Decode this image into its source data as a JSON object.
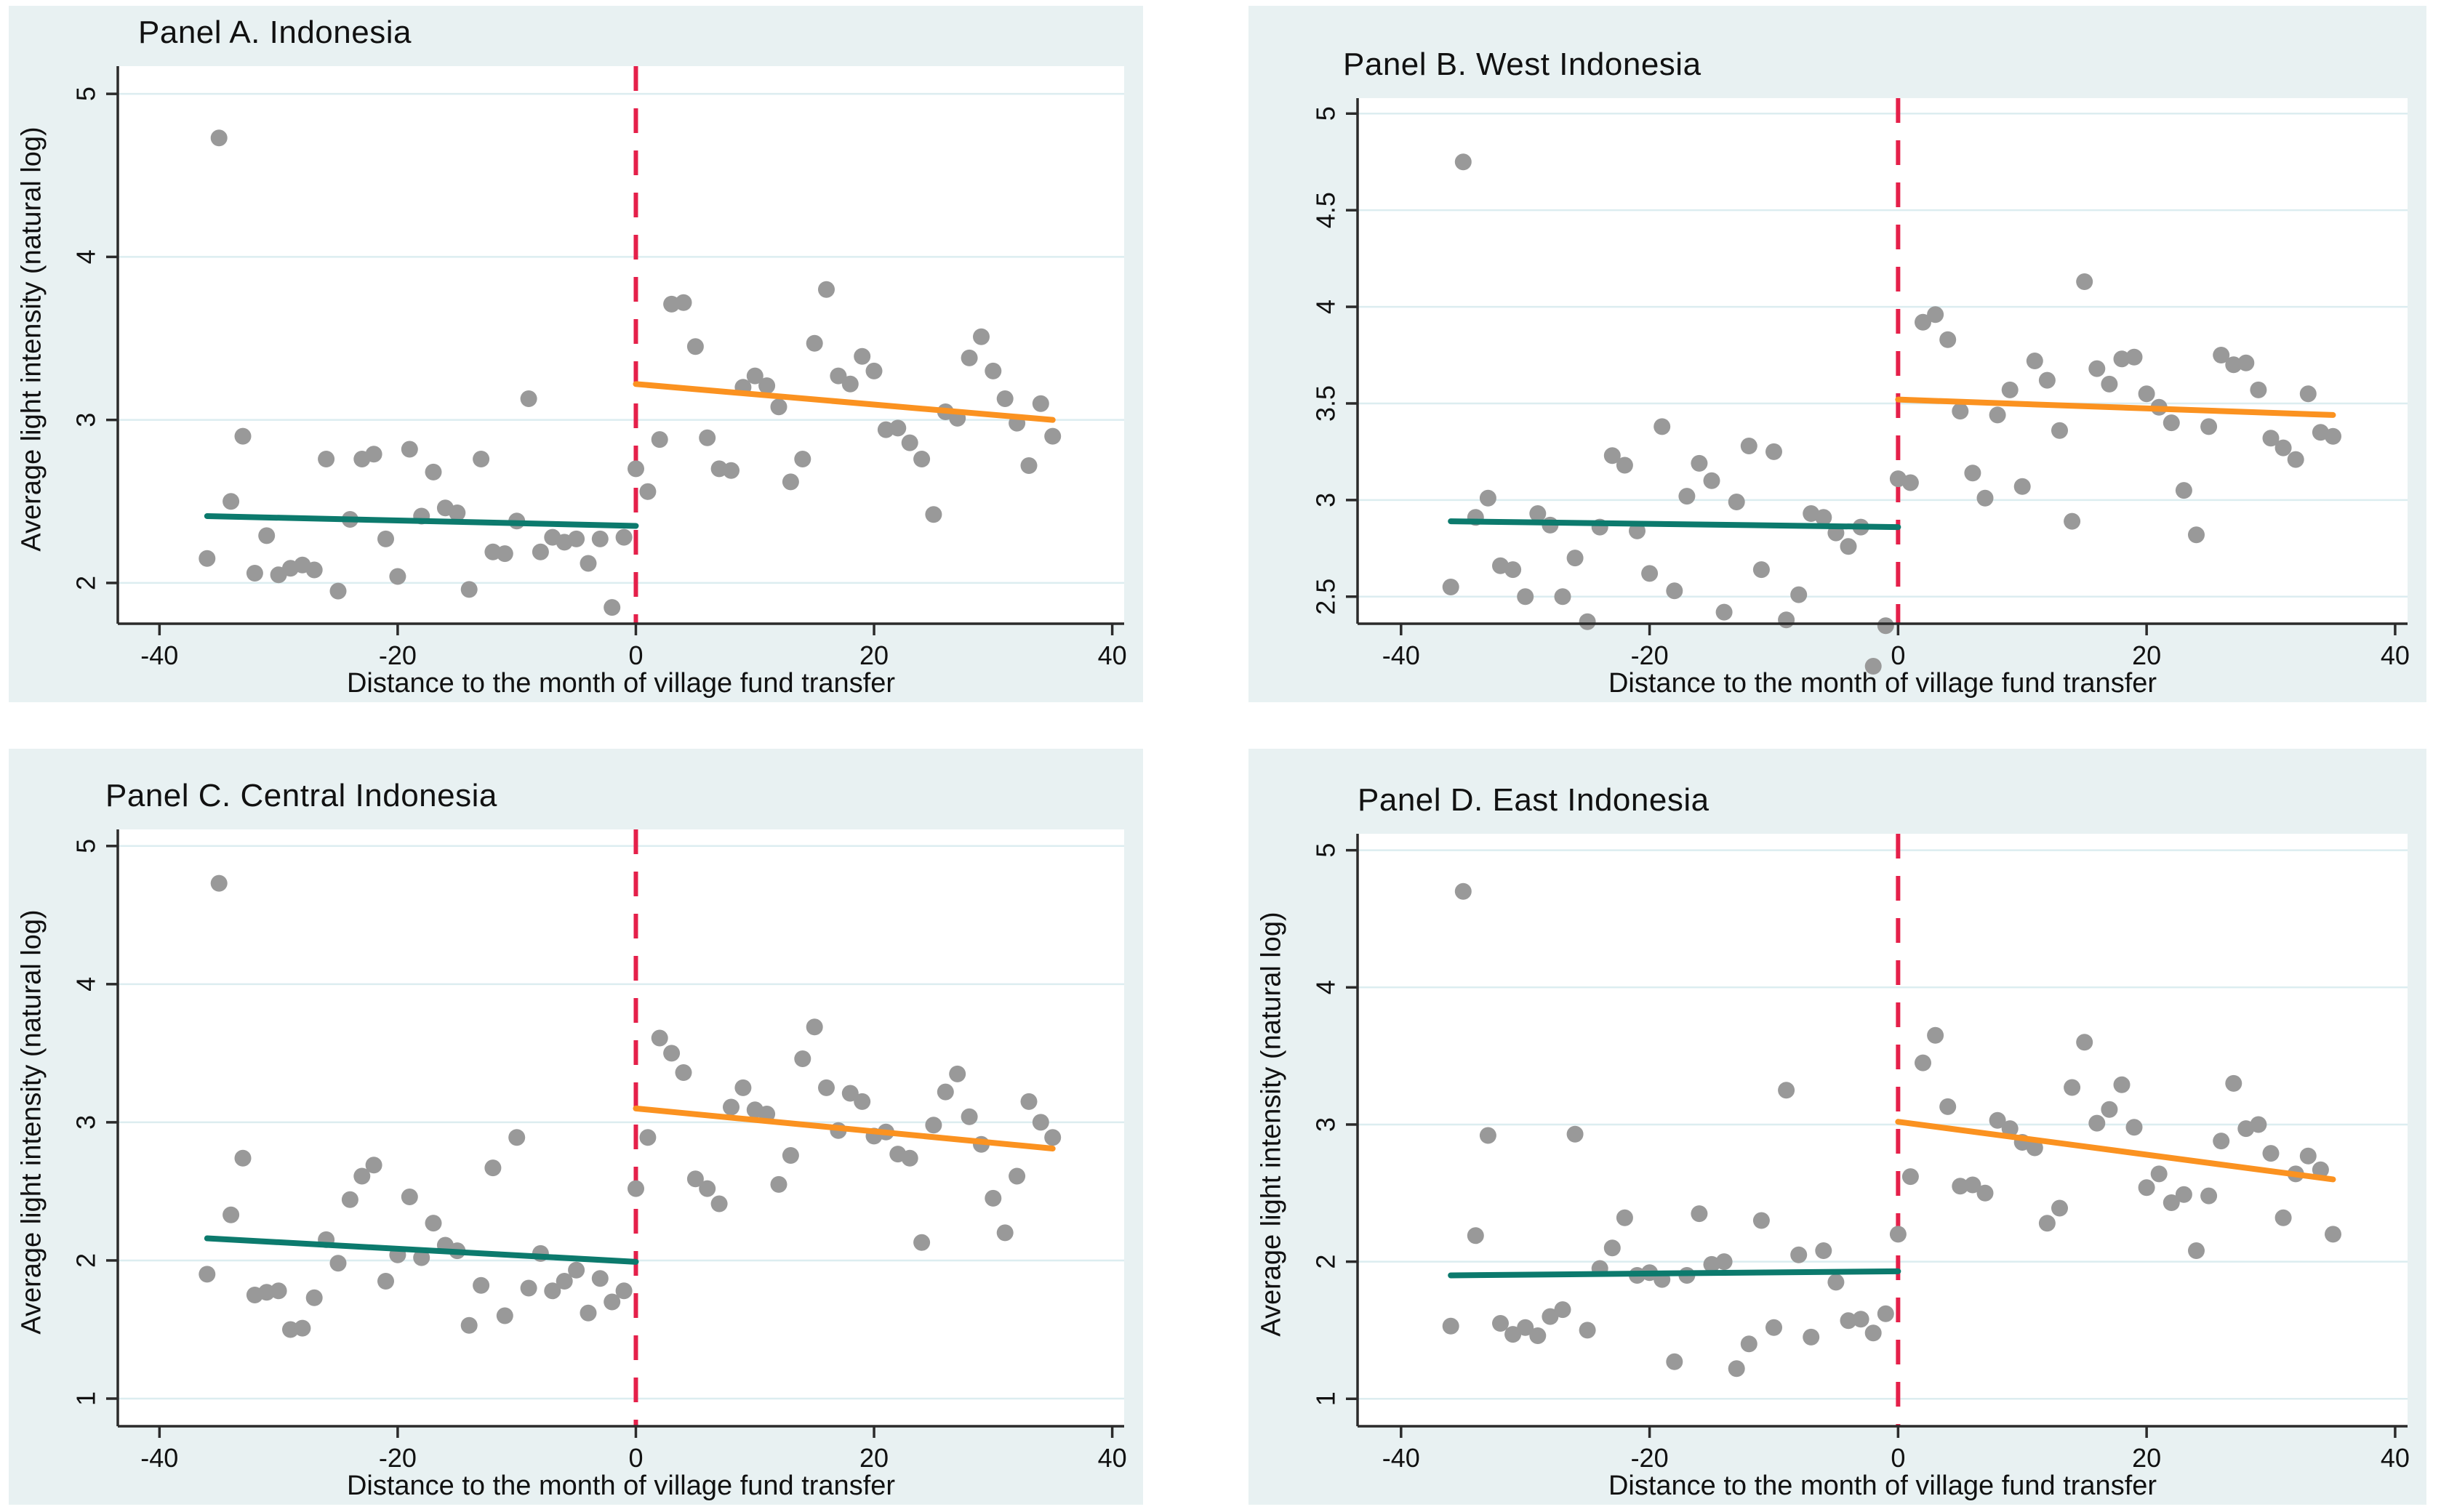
{
  "styles": {
    "canvas_bg": "#ffffff",
    "panel_bg": "#e8f1f2",
    "plot_bg": "#ffffff",
    "grid_color": "#dcedf0",
    "axis_color": "#2b2b2b",
    "text_color": "#111111",
    "point_color": "#999999",
    "pre_fit_color": "#0c7a6d",
    "post_fit_color": "#fb9220",
    "cutoff_color": "#e5204a"
  },
  "chart_data": [
    {
      "type": "scatter",
      "title": "Panel A. Indonesia",
      "xlabel": "Distance to the month of village fund transfer",
      "ylabel": "Average light intensity (natural log)",
      "xlim": [
        -43.5,
        41
      ],
      "ylim": [
        1.75,
        5.17
      ],
      "xticks": [
        -40,
        -20,
        0,
        20,
        40
      ],
      "yticks": [
        2,
        3,
        4,
        5
      ],
      "grid": true,
      "legend": "none",
      "cutoff_x": 0,
      "fit_pre": [
        [
          -36,
          2.41
        ],
        [
          0,
          2.35
        ]
      ],
      "fit_post": [
        [
          0,
          3.22
        ],
        [
          35,
          3.0
        ]
      ],
      "points": [
        [
          -36,
          2.15
        ],
        [
          -35,
          4.73
        ],
        [
          -34,
          2.5
        ],
        [
          -33,
          2.9
        ],
        [
          -32,
          2.06
        ],
        [
          -31,
          2.29
        ],
        [
          -30,
          2.05
        ],
        [
          -29,
          2.09
        ],
        [
          -28,
          2.11
        ],
        [
          -27,
          2.08
        ],
        [
          -26,
          2.76
        ],
        [
          -25,
          1.95
        ],
        [
          -24,
          2.39
        ],
        [
          -23,
          2.76
        ],
        [
          -22,
          2.79
        ],
        [
          -21,
          2.27
        ],
        [
          -20,
          2.04
        ],
        [
          -19,
          2.82
        ],
        [
          -18,
          2.41
        ],
        [
          -17,
          2.68
        ],
        [
          -16,
          2.46
        ],
        [
          -15,
          2.43
        ],
        [
          -14,
          1.96
        ],
        [
          -13,
          2.76
        ],
        [
          -12,
          2.19
        ],
        [
          -11,
          2.18
        ],
        [
          -10,
          2.38
        ],
        [
          -9,
          3.13
        ],
        [
          -8,
          2.19
        ],
        [
          -7,
          2.28
        ],
        [
          -6,
          2.25
        ],
        [
          -5,
          2.27
        ],
        [
          -4,
          2.12
        ],
        [
          -3,
          2.27
        ],
        [
          -2,
          1.85
        ],
        [
          -1,
          2.28
        ],
        [
          0,
          2.7
        ],
        [
          1,
          2.56
        ],
        [
          2,
          2.88
        ],
        [
          3,
          3.71
        ],
        [
          4,
          3.72
        ],
        [
          5,
          3.45
        ],
        [
          6,
          2.89
        ],
        [
          7,
          2.7
        ],
        [
          8,
          2.69
        ],
        [
          9,
          3.2
        ],
        [
          10,
          3.27
        ],
        [
          11,
          3.21
        ],
        [
          12,
          3.08
        ],
        [
          13,
          2.62
        ],
        [
          14,
          2.76
        ],
        [
          15,
          3.47
        ],
        [
          16,
          3.8
        ],
        [
          17,
          3.27
        ],
        [
          18,
          3.22
        ],
        [
          19,
          3.39
        ],
        [
          20,
          3.3
        ],
        [
          21,
          2.94
        ],
        [
          22,
          2.95
        ],
        [
          23,
          2.86
        ],
        [
          24,
          2.76
        ],
        [
          25,
          2.42
        ],
        [
          26,
          3.05
        ],
        [
          27,
          3.01
        ],
        [
          28,
          3.38
        ],
        [
          29,
          3.51
        ],
        [
          30,
          3.3
        ],
        [
          31,
          3.13
        ],
        [
          32,
          2.98
        ],
        [
          33,
          2.72
        ],
        [
          34,
          3.1
        ],
        [
          35,
          2.9
        ]
      ]
    },
    {
      "type": "scatter",
      "title": "Panel B. West Indonesia",
      "xlabel": "Distance to the month of village fund transfer",
      "ylabel": "",
      "xlim": [
        -43.5,
        41
      ],
      "ylim": [
        2.36,
        5.08
      ],
      "xticks": [
        -40,
        -20,
        0,
        20,
        40
      ],
      "yticks": [
        2.5,
        3,
        3.5,
        4,
        4.5,
        5
      ],
      "grid": true,
      "legend": "none",
      "cutoff_x": 0,
      "fit_pre": [
        [
          -36,
          2.89
        ],
        [
          0,
          2.86
        ]
      ],
      "fit_post": [
        [
          0,
          3.52
        ],
        [
          35,
          3.44
        ]
      ],
      "points": [
        [
          -36,
          2.55
        ],
        [
          -35,
          4.75
        ],
        [
          -34,
          2.91
        ],
        [
          -33,
          3.01
        ],
        [
          -32,
          2.66
        ],
        [
          -31,
          2.64
        ],
        [
          -30,
          2.5
        ],
        [
          -29,
          2.93
        ],
        [
          -28,
          2.87
        ],
        [
          -27,
          2.5
        ],
        [
          -26,
          2.7
        ],
        [
          -25,
          2.37
        ],
        [
          -24,
          2.86
        ],
        [
          -23,
          3.23
        ],
        [
          -22,
          3.18
        ],
        [
          -21,
          2.84
        ],
        [
          -20,
          2.62
        ],
        [
          -19,
          3.38
        ],
        [
          -18,
          2.53
        ],
        [
          -17,
          3.02
        ],
        [
          -16,
          3.19
        ],
        [
          -15,
          3.1
        ],
        [
          -14,
          2.42
        ],
        [
          -13,
          2.99
        ],
        [
          -12,
          3.28
        ],
        [
          -11,
          2.64
        ],
        [
          -10,
          3.25
        ],
        [
          -9,
          2.38
        ],
        [
          -8,
          2.51
        ],
        [
          -7,
          2.93
        ],
        [
          -6,
          2.91
        ],
        [
          -5,
          2.83
        ],
        [
          -4,
          2.76
        ],
        [
          -3,
          2.86
        ],
        [
          -2,
          2.14
        ],
        [
          -1,
          2.35
        ],
        [
          0,
          3.11
        ],
        [
          1,
          3.09
        ],
        [
          2,
          3.92
        ],
        [
          3,
          3.96
        ],
        [
          4,
          3.83
        ],
        [
          5,
          3.46
        ],
        [
          6,
          3.14
        ],
        [
          7,
          3.01
        ],
        [
          8,
          3.44
        ],
        [
          9,
          3.57
        ],
        [
          10,
          3.07
        ],
        [
          11,
          3.72
        ],
        [
          12,
          3.62
        ],
        [
          13,
          3.36
        ],
        [
          14,
          2.89
        ],
        [
          15,
          4.13
        ],
        [
          16,
          3.68
        ],
        [
          17,
          3.6
        ],
        [
          18,
          3.73
        ],
        [
          19,
          3.74
        ],
        [
          20,
          3.55
        ],
        [
          21,
          3.48
        ],
        [
          22,
          3.4
        ],
        [
          23,
          3.05
        ],
        [
          24,
          2.82
        ],
        [
          25,
          3.38
        ],
        [
          26,
          3.75
        ],
        [
          27,
          3.7
        ],
        [
          28,
          3.71
        ],
        [
          29,
          3.57
        ],
        [
          30,
          3.32
        ],
        [
          31,
          3.27
        ],
        [
          32,
          3.21
        ],
        [
          33,
          3.55
        ],
        [
          34,
          3.35
        ],
        [
          35,
          3.33
        ]
      ]
    },
    {
      "type": "scatter",
      "title": "Panel C. Central Indonesia",
      "xlabel": "Distance to the month of village fund transfer",
      "ylabel": "Average light intensity (natural log)",
      "xlim": [
        -43.5,
        41
      ],
      "ylim": [
        0.8,
        5.12
      ],
      "xticks": [
        -40,
        -20,
        0,
        20,
        40
      ],
      "yticks": [
        1,
        2,
        3,
        4,
        5
      ],
      "grid": true,
      "legend": "none",
      "cutoff_x": 0,
      "fit_pre": [
        [
          -36,
          2.16
        ],
        [
          0,
          1.99
        ]
      ],
      "fit_post": [
        [
          0,
          3.1
        ],
        [
          35,
          2.81
        ]
      ],
      "points": [
        [
          -36,
          1.9
        ],
        [
          -35,
          4.73
        ],
        [
          -34,
          2.33
        ],
        [
          -33,
          2.74
        ],
        [
          -32,
          1.75
        ],
        [
          -31,
          1.77
        ],
        [
          -30,
          1.78
        ],
        [
          -29,
          1.5
        ],
        [
          -28,
          1.51
        ],
        [
          -27,
          1.73
        ],
        [
          -26,
          2.15
        ],
        [
          -25,
          1.98
        ],
        [
          -24,
          2.44
        ],
        [
          -23,
          2.61
        ],
        [
          -22,
          2.69
        ],
        [
          -21,
          1.85
        ],
        [
          -20,
          2.04
        ],
        [
          -19,
          2.46
        ],
        [
          -18,
          2.02
        ],
        [
          -17,
          2.27
        ],
        [
          -16,
          2.11
        ],
        [
          -15,
          2.07
        ],
        [
          -14,
          1.53
        ],
        [
          -13,
          1.82
        ],
        [
          -12,
          2.67
        ],
        [
          -11,
          1.6
        ],
        [
          -10,
          2.89
        ],
        [
          -9,
          1.8
        ],
        [
          -8,
          2.05
        ],
        [
          -7,
          1.78
        ],
        [
          -6,
          1.85
        ],
        [
          -5,
          1.93
        ],
        [
          -4,
          1.62
        ],
        [
          -3,
          1.87
        ],
        [
          -2,
          1.7
        ],
        [
          -1,
          1.78
        ],
        [
          0,
          2.52
        ],
        [
          1,
          2.89
        ],
        [
          2,
          3.61
        ],
        [
          3,
          3.5
        ],
        [
          4,
          3.36
        ],
        [
          5,
          2.59
        ],
        [
          6,
          2.52
        ],
        [
          7,
          2.41
        ],
        [
          8,
          3.11
        ],
        [
          9,
          3.25
        ],
        [
          10,
          3.09
        ],
        [
          11,
          3.06
        ],
        [
          12,
          2.55
        ],
        [
          13,
          2.76
        ],
        [
          14,
          3.46
        ],
        [
          15,
          3.69
        ],
        [
          16,
          3.25
        ],
        [
          17,
          2.94
        ],
        [
          18,
          3.21
        ],
        [
          19,
          3.15
        ],
        [
          20,
          2.9
        ],
        [
          21,
          2.93
        ],
        [
          22,
          2.77
        ],
        [
          23,
          2.74
        ],
        [
          24,
          2.13
        ],
        [
          25,
          2.98
        ],
        [
          26,
          3.22
        ],
        [
          27,
          3.35
        ],
        [
          28,
          3.04
        ],
        [
          29,
          2.84
        ],
        [
          30,
          2.45
        ],
        [
          31,
          2.2
        ],
        [
          32,
          2.61
        ],
        [
          33,
          3.15
        ],
        [
          34,
          3.0
        ],
        [
          35,
          2.89
        ]
      ]
    },
    {
      "type": "scatter",
      "title": "Panel D. East Indonesia",
      "xlabel": "Distance to the month of village fund transfer",
      "ylabel": "Average light intensity (natural log)",
      "xlim": [
        -43.5,
        41
      ],
      "ylim": [
        0.8,
        5.12
      ],
      "xticks": [
        -40,
        -20,
        0,
        20,
        40
      ],
      "yticks": [
        1,
        2,
        3,
        4,
        5
      ],
      "grid": true,
      "legend": "none",
      "cutoff_x": 0,
      "fit_pre": [
        [
          -36,
          1.9
        ],
        [
          0,
          1.93
        ]
      ],
      "fit_post": [
        [
          0,
          3.02
        ],
        [
          35,
          2.6
        ]
      ],
      "points": [
        [
          -36,
          1.53
        ],
        [
          -35,
          4.7
        ],
        [
          -34,
          2.19
        ],
        [
          -33,
          2.92
        ],
        [
          -32,
          1.55
        ],
        [
          -31,
          1.47
        ],
        [
          -30,
          1.52
        ],
        [
          -29,
          1.46
        ],
        [
          -28,
          1.6
        ],
        [
          -27,
          1.65
        ],
        [
          -26,
          2.93
        ],
        [
          -25,
          1.5
        ],
        [
          -24,
          1.95
        ],
        [
          -23,
          2.1
        ],
        [
          -22,
          2.32
        ],
        [
          -21,
          1.9
        ],
        [
          -20,
          1.92
        ],
        [
          -19,
          1.87
        ],
        [
          -18,
          1.27
        ],
        [
          -17,
          1.9
        ],
        [
          -16,
          2.35
        ],
        [
          -15,
          1.98
        ],
        [
          -14,
          2.0
        ],
        [
          -13,
          1.22
        ],
        [
          -12,
          1.4
        ],
        [
          -11,
          2.3
        ],
        [
          -10,
          1.52
        ],
        [
          -9,
          3.25
        ],
        [
          -8,
          2.05
        ],
        [
          -7,
          1.45
        ],
        [
          -6,
          2.08
        ],
        [
          -5,
          1.85
        ],
        [
          -4,
          1.57
        ],
        [
          -3,
          1.58
        ],
        [
          -2,
          1.48
        ],
        [
          -1,
          1.62
        ],
        [
          0,
          2.2
        ],
        [
          1,
          2.62
        ],
        [
          2,
          3.45
        ],
        [
          3,
          3.65
        ],
        [
          4,
          3.13
        ],
        [
          5,
          2.55
        ],
        [
          6,
          2.56
        ],
        [
          7,
          2.5
        ],
        [
          8,
          3.03
        ],
        [
          9,
          2.97
        ],
        [
          10,
          2.87
        ],
        [
          11,
          2.83
        ],
        [
          12,
          2.28
        ],
        [
          13,
          2.39
        ],
        [
          14,
          3.27
        ],
        [
          15,
          3.6
        ],
        [
          16,
          3.01
        ],
        [
          17,
          3.11
        ],
        [
          18,
          3.29
        ],
        [
          19,
          2.98
        ],
        [
          20,
          2.54
        ],
        [
          21,
          2.64
        ],
        [
          22,
          2.43
        ],
        [
          23,
          2.49
        ],
        [
          24,
          2.08
        ],
        [
          25,
          2.48
        ],
        [
          26,
          2.88
        ],
        [
          27,
          3.3
        ],
        [
          28,
          2.97
        ],
        [
          29,
          3.0
        ],
        [
          30,
          2.79
        ],
        [
          31,
          2.32
        ],
        [
          32,
          2.64
        ],
        [
          33,
          2.77
        ],
        [
          34,
          2.67
        ],
        [
          35,
          2.2
        ]
      ]
    }
  ]
}
